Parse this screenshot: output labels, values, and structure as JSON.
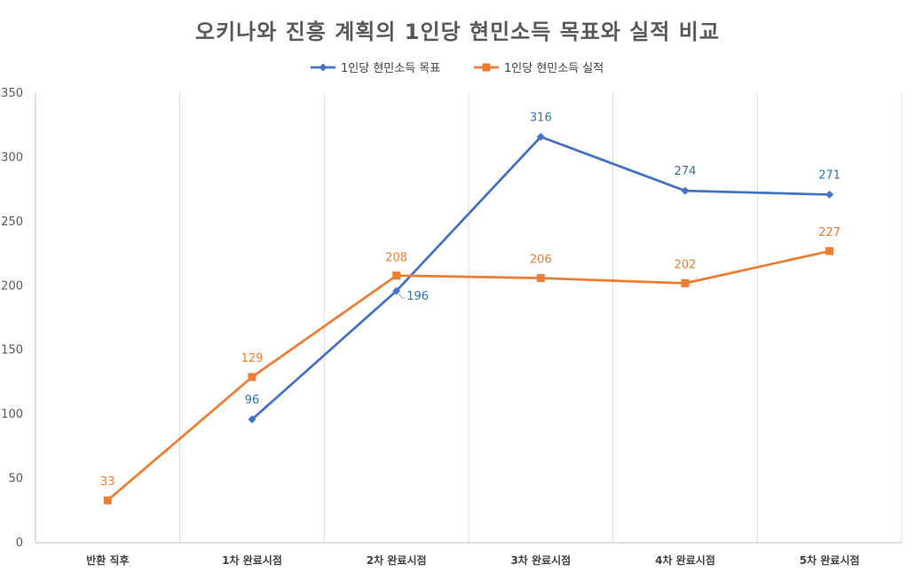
{
  "chart_data": {
    "type": "line",
    "title": "오키나와 진흥 계획의 1인당 현민소득 목표와 실적 비교",
    "categories": [
      "반환 직후",
      "1차 완료시점",
      "2차 완료시점",
      "3차 완료시점",
      "4차 완료시점",
      "5차 완료시점"
    ],
    "ylim": [
      0,
      350
    ],
    "yticks": [
      0,
      50,
      100,
      150,
      200,
      250,
      300,
      350
    ],
    "grid": "vertical",
    "legend": "top-center",
    "series": [
      {
        "name": "1인당 현민소득 목표",
        "color": "#4472C4",
        "label_color": "#2E75B6",
        "marker": "diamond",
        "values": [
          null,
          96,
          196,
          316,
          274,
          271
        ],
        "labels": [
          "",
          "96",
          "196",
          "316",
          "274",
          "271"
        ]
      },
      {
        "name": "1인당 현민소득 실적",
        "color": "#ED7D31",
        "label_color": "#ED7D31",
        "marker": "square",
        "values": [
          33,
          129,
          208,
          206,
          202,
          227
        ],
        "labels": [
          "33",
          "129",
          "208",
          "206",
          "202",
          "227"
        ]
      }
    ]
  }
}
